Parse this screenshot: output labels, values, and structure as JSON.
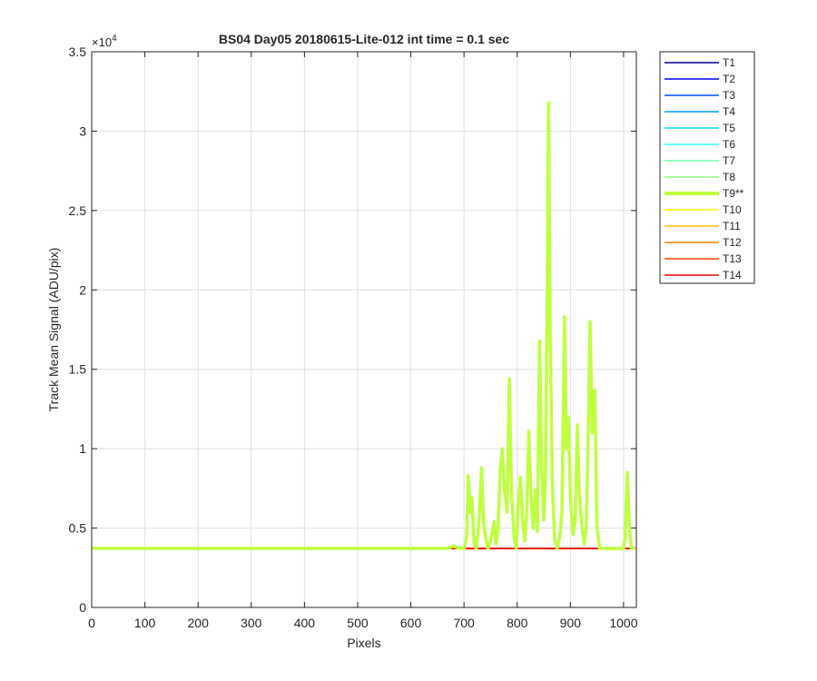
{
  "chart_data": {
    "type": "line",
    "title": "BS04 Day05 20180615-Lite-012 int time = 0.1 sec",
    "xlabel": "Pixels",
    "ylabel": "Track Mean Signal (ADU/pix)",
    "xlim": [
      0,
      1024
    ],
    "ylim": [
      0,
      35000
    ],
    "x_ticks": [
      0,
      100,
      200,
      300,
      400,
      500,
      600,
      700,
      800,
      900,
      1000
    ],
    "y_ticks": [
      0,
      5000,
      10000,
      15000,
      20000,
      25000,
      30000,
      35000
    ],
    "y_tick_labels": [
      "0",
      "0.5",
      "1",
      "1.5",
      "2",
      "2.5",
      "3",
      "3.5"
    ],
    "y_exponent_label": "×10",
    "y_exponent_power": "4",
    "grid": true,
    "legend_position": "outside-top-right",
    "series": [
      {
        "name": "T1",
        "color": "#00008f",
        "values": [
          [
            0,
            3720
          ],
          [
            1024,
            3720
          ]
        ]
      },
      {
        "name": "T2",
        "color": "#0000ef",
        "values": [
          [
            0,
            3720
          ],
          [
            1024,
            3720
          ]
        ]
      },
      {
        "name": "T3",
        "color": "#0050ff",
        "values": [
          [
            0,
            3720
          ],
          [
            1024,
            3720
          ]
        ]
      },
      {
        "name": "T4",
        "color": "#009fff",
        "values": [
          [
            0,
            3720
          ],
          [
            1024,
            3720
          ]
        ]
      },
      {
        "name": "T5",
        "color": "#00dfff",
        "values": [
          [
            0,
            3720
          ],
          [
            1024,
            3720
          ]
        ]
      },
      {
        "name": "T6",
        "color": "#2fffef",
        "values": [
          [
            0,
            3720
          ],
          [
            1024,
            3720
          ]
        ]
      },
      {
        "name": "T7",
        "color": "#6fffaf",
        "values": [
          [
            0,
            3720
          ],
          [
            1024,
            3720
          ]
        ]
      },
      {
        "name": "T8",
        "color": "#8fff80",
        "values": [
          [
            0,
            3720
          ],
          [
            1024,
            3720
          ]
        ]
      },
      {
        "name": "T9**",
        "color": "#bfff40",
        "highlight": true,
        "values": [
          [
            0,
            3720
          ],
          [
            670,
            3720
          ],
          [
            680,
            3880
          ],
          [
            690,
            3740
          ],
          [
            700,
            3720
          ],
          [
            705,
            4400
          ],
          [
            708,
            8300
          ],
          [
            712,
            6000
          ],
          [
            715,
            6900
          ],
          [
            719,
            4000
          ],
          [
            723,
            3720
          ],
          [
            728,
            5400
          ],
          [
            733,
            8800
          ],
          [
            737,
            5200
          ],
          [
            741,
            4400
          ],
          [
            745,
            3720
          ],
          [
            750,
            4200
          ],
          [
            756,
            5400
          ],
          [
            760,
            4000
          ],
          [
            764,
            5000
          ],
          [
            768,
            8600
          ],
          [
            772,
            10000
          ],
          [
            776,
            7500
          ],
          [
            781,
            6000
          ],
          [
            785,
            14400
          ],
          [
            789,
            7500
          ],
          [
            794,
            4500
          ],
          [
            798,
            3720
          ],
          [
            802,
            6500
          ],
          [
            806,
            8200
          ],
          [
            810,
            5500
          ],
          [
            814,
            4200
          ],
          [
            818,
            6000
          ],
          [
            822,
            11100
          ],
          [
            826,
            7000
          ],
          [
            830,
            5000
          ],
          [
            834,
            7400
          ],
          [
            838,
            4800
          ],
          [
            842,
            16800
          ],
          [
            846,
            9000
          ],
          [
            850,
            5500
          ],
          [
            853,
            8000
          ],
          [
            856,
            18200
          ],
          [
            859,
            31800
          ],
          [
            862,
            17000
          ],
          [
            866,
            8000
          ],
          [
            870,
            4400
          ],
          [
            875,
            3720
          ],
          [
            880,
            4400
          ],
          [
            884,
            6000
          ],
          [
            889,
            18300
          ],
          [
            892,
            10000
          ],
          [
            896,
            12000
          ],
          [
            900,
            7000
          ],
          [
            905,
            4600
          ],
          [
            909,
            5400
          ],
          [
            913,
            11500
          ],
          [
            917,
            7000
          ],
          [
            922,
            5000
          ],
          [
            926,
            4000
          ],
          [
            930,
            5000
          ],
          [
            934,
            12000
          ],
          [
            937,
            18000
          ],
          [
            941,
            11000
          ],
          [
            946,
            13700
          ],
          [
            950,
            5000
          ],
          [
            955,
            3720
          ],
          [
            1000,
            3720
          ],
          [
            1003,
            4500
          ],
          [
            1007,
            8500
          ],
          [
            1011,
            5000
          ],
          [
            1015,
            3720
          ],
          [
            1024,
            3720
          ]
        ]
      },
      {
        "name": "T10",
        "color": "#ffff00",
        "values": [
          [
            0,
            3720
          ],
          [
            1024,
            3720
          ]
        ]
      },
      {
        "name": "T11",
        "color": "#ffbf00",
        "values": [
          [
            0,
            3720
          ],
          [
            1024,
            3720
          ]
        ]
      },
      {
        "name": "T12",
        "color": "#ff8000",
        "values": [
          [
            0,
            3720
          ],
          [
            1024,
            3720
          ]
        ]
      },
      {
        "name": "T13",
        "color": "#ff4000",
        "values": [
          [
            0,
            3720
          ],
          [
            1024,
            3720
          ]
        ]
      },
      {
        "name": "T14",
        "color": "#ef0000",
        "values": [
          [
            0,
            3720
          ],
          [
            1024,
            3720
          ]
        ]
      }
    ]
  }
}
